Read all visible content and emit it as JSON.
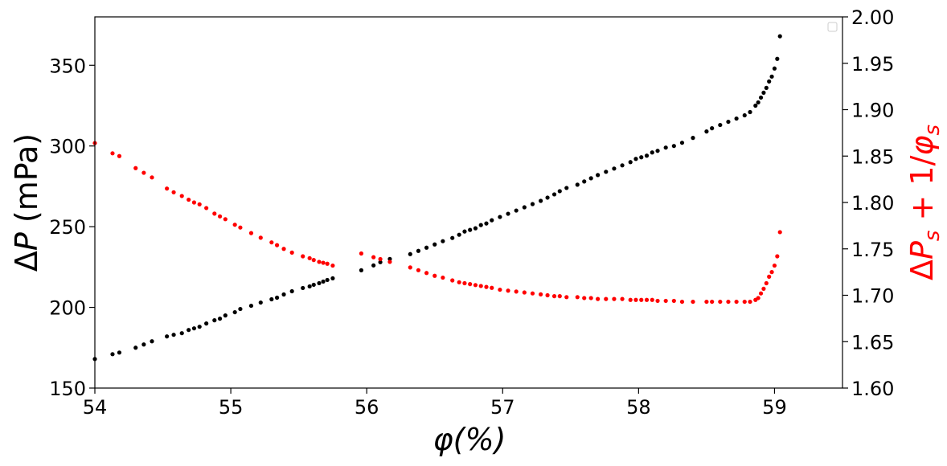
{
  "chart_data": {
    "type": "scatter",
    "title": "",
    "xlabel": "φ(%)",
    "ylabel_left": {
      "delta": "Δ",
      "var": "P",
      "rest": " (mPa)"
    },
    "ylabel_right": {
      "delta": "Δ",
      "var": "P",
      "sub": "s",
      "mid": " + 1/",
      "phi": "φ",
      "sub2": "s"
    },
    "xlim": [
      54,
      59.5
    ],
    "ylim_left": [
      150,
      380
    ],
    "ylim_right": [
      1.6,
      2.0
    ],
    "x_ticks": [
      "54",
      "55",
      "56",
      "57",
      "58",
      "59"
    ],
    "x_tick_values": [
      54,
      55,
      56,
      57,
      58,
      59
    ],
    "y_left_ticks": [
      "150",
      "200",
      "250",
      "300",
      "350"
    ],
    "y_left_tick_values": [
      150,
      200,
      250,
      300,
      350
    ],
    "y_right_ticks": [
      "1.60",
      "1.65",
      "1.70",
      "1.75",
      "1.80",
      "1.85",
      "1.90",
      "1.95",
      "2.00"
    ],
    "y_right_tick_values": [
      1.6,
      1.65,
      1.7,
      1.75,
      1.8,
      1.85,
      1.9,
      1.95,
      2.0
    ],
    "grid": false,
    "legend": "top-right (empty)",
    "series": [
      {
        "axis": "left",
        "color": "#000000",
        "x": [
          54.0,
          54.13,
          54.18,
          54.3,
          54.36,
          54.42,
          54.53,
          54.58,
          54.64,
          54.69,
          54.73,
          54.77,
          54.82,
          54.88,
          54.92,
          54.96,
          55.03,
          55.07,
          55.15,
          55.22,
          55.3,
          55.34,
          55.39,
          55.45,
          55.53,
          55.58,
          55.61,
          55.65,
          55.68,
          55.71,
          55.75,
          55.96,
          56.05,
          56.1,
          56.17,
          56.32,
          56.38,
          56.44,
          56.5,
          56.56,
          56.63,
          56.68,
          56.72,
          56.76,
          56.8,
          56.84,
          56.88,
          56.92,
          56.98,
          57.04,
          57.1,
          57.16,
          57.22,
          57.28,
          57.33,
          57.38,
          57.42,
          57.47,
          57.55,
          57.6,
          57.65,
          57.7,
          57.76,
          57.82,
          57.88,
          57.94,
          57.98,
          58.02,
          58.06,
          58.1,
          58.14,
          58.2,
          58.26,
          58.32,
          58.4,
          58.5,
          58.54,
          58.6,
          58.66,
          58.72,
          58.78,
          58.82,
          58.86,
          58.88,
          58.9,
          58.92,
          58.94,
          58.96,
          58.98,
          59.0,
          59.02,
          59.04
        ],
        "y": [
          168,
          171,
          172,
          175,
          177,
          179,
          182,
          183,
          184,
          186,
          187,
          188,
          190,
          192,
          193,
          195,
          197,
          199,
          201,
          203,
          205,
          206,
          208,
          210,
          212,
          213,
          214,
          215,
          216,
          217,
          218,
          223,
          226,
          228,
          230,
          233,
          235,
          237,
          239,
          241,
          243,
          245,
          247,
          248,
          249,
          251,
          252,
          254,
          256,
          258,
          260,
          262,
          264,
          266,
          268,
          270,
          272,
          274,
          276,
          278,
          280,
          282,
          284,
          286,
          288,
          290,
          292,
          293,
          294,
          296,
          297,
          299,
          300,
          302,
          305,
          309,
          311,
          313,
          315,
          317,
          319,
          321,
          325,
          327,
          330,
          333,
          336,
          340,
          343,
          348,
          354,
          368
        ]
      },
      {
        "axis": "right",
        "color": "#ff0000",
        "x": [
          54.0,
          54.13,
          54.18,
          54.3,
          54.36,
          54.42,
          54.53,
          54.58,
          54.64,
          54.69,
          54.73,
          54.77,
          54.82,
          54.88,
          54.92,
          54.96,
          55.03,
          55.07,
          55.15,
          55.22,
          55.3,
          55.34,
          55.39,
          55.45,
          55.53,
          55.58,
          55.61,
          55.65,
          55.68,
          55.71,
          55.75,
          55.96,
          56.05,
          56.1,
          56.17,
          56.32,
          56.38,
          56.44,
          56.5,
          56.56,
          56.63,
          56.68,
          56.72,
          56.76,
          56.8,
          56.84,
          56.88,
          56.92,
          56.98,
          57.04,
          57.1,
          57.16,
          57.22,
          57.28,
          57.33,
          57.38,
          57.42,
          57.47,
          57.55,
          57.6,
          57.65,
          57.7,
          57.76,
          57.82,
          57.88,
          57.94,
          57.98,
          58.02,
          58.06,
          58.1,
          58.14,
          58.2,
          58.26,
          58.32,
          58.4,
          58.5,
          58.54,
          58.6,
          58.66,
          58.72,
          58.78,
          58.82,
          58.86,
          58.88,
          58.9,
          58.92,
          58.94,
          58.96,
          58.98,
          59.0,
          59.02,
          59.04
        ],
        "y": [
          1.864,
          1.853,
          1.85,
          1.837,
          1.832,
          1.827,
          1.815,
          1.811,
          1.807,
          1.803,
          1.8,
          1.798,
          1.794,
          1.788,
          1.785,
          1.782,
          1.776,
          1.773,
          1.767,
          1.762,
          1.757,
          1.754,
          1.75,
          1.746,
          1.742,
          1.74,
          1.738,
          1.736,
          1.735,
          1.734,
          1.732,
          1.745,
          1.741,
          1.739,
          1.736,
          1.73,
          1.727,
          1.724,
          1.721,
          1.719,
          1.716,
          1.714,
          1.713,
          1.712,
          1.711,
          1.71,
          1.709,
          1.708,
          1.706,
          1.705,
          1.704,
          1.703,
          1.702,
          1.701,
          1.7,
          1.699,
          1.699,
          1.698,
          1.698,
          1.697,
          1.697,
          1.696,
          1.696,
          1.696,
          1.696,
          1.695,
          1.695,
          1.695,
          1.695,
          1.695,
          1.694,
          1.694,
          1.694,
          1.693,
          1.693,
          1.693,
          1.693,
          1.693,
          1.693,
          1.693,
          1.693,
          1.693,
          1.695,
          1.697,
          1.702,
          1.707,
          1.713,
          1.72,
          1.725,
          1.732,
          1.742,
          1.768
        ]
      }
    ]
  }
}
